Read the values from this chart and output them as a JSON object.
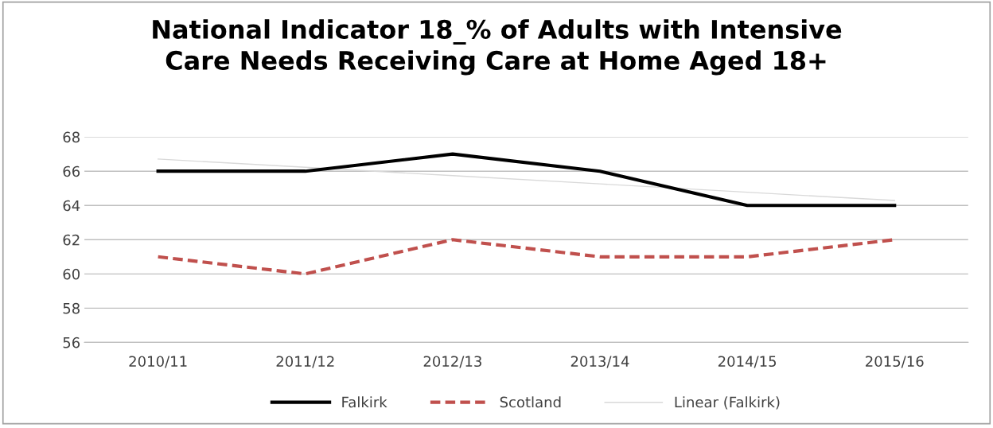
{
  "chart_data": {
    "type": "line",
    "title": "National Indicator 18_% of Adults with Intensive\nCare Needs Receiving Care at Home Aged 18+",
    "categories": [
      "2010/11",
      "2011/12",
      "2012/13",
      "2013/14",
      "2014/15",
      "2015/16"
    ],
    "series": [
      {
        "name": "Falkirk",
        "color": "#000000",
        "line_style": "solid",
        "values": [
          66,
          66,
          67,
          66,
          64,
          64
        ]
      },
      {
        "name": "Scotland",
        "color": "#c0504d",
        "line_style": "dashed",
        "values": [
          61,
          60,
          62,
          61,
          61,
          62
        ]
      },
      {
        "name": "Linear (Falkirk)",
        "color": "#d9d9d9",
        "line_style": "solid",
        "values": [
          66.71,
          66.23,
          65.74,
          65.26,
          64.77,
          64.29
        ]
      }
    ],
    "ylim": [
      56,
      68
    ],
    "yticks": [
      56,
      58,
      60,
      62,
      64,
      66,
      68
    ],
    "grid": "y",
    "legend": "bottom",
    "marker": "none"
  }
}
